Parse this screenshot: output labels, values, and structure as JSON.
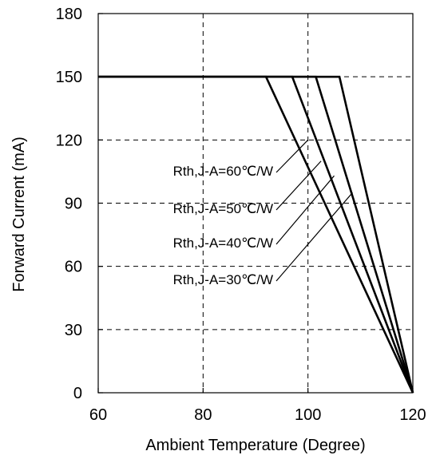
{
  "chart_data": {
    "type": "line",
    "title": "",
    "xlabel": "Ambient Temperature (Degree)",
    "ylabel": "Forward Current (mA)",
    "xlim": [
      60,
      120
    ],
    "ylim": [
      0,
      180
    ],
    "xticks": [
      60,
      80,
      100,
      120
    ],
    "yticks": [
      0,
      30,
      60,
      90,
      120,
      150,
      180
    ],
    "grid": true,
    "line_color": "#000000",
    "series": [
      {
        "label": "Rth,J-A=60℃/W",
        "x": [
          60,
          92,
          120
        ],
        "y": [
          150,
          150,
          0
        ],
        "annotation_point": {
          "x": 100,
          "y": 120
        }
      },
      {
        "label": "Rth,J-A=50℃/W",
        "x": [
          60,
          97,
          120
        ],
        "y": [
          150,
          150,
          0
        ],
        "annotation_point": {
          "x": 102.5,
          "y": 110
        }
      },
      {
        "label": "Rth,J-A=40℃/W",
        "x": [
          60,
          101.5,
          120
        ],
        "y": [
          150,
          150,
          0
        ],
        "annotation_point": {
          "x": 105,
          "y": 103
        }
      },
      {
        "label": "Rth,J-A=30℃/W",
        "x": [
          60,
          106,
          120
        ],
        "y": [
          150,
          150,
          0
        ],
        "annotation_point": {
          "x": 108.5,
          "y": 95
        }
      }
    ]
  }
}
